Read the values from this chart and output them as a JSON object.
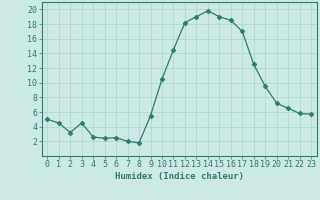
{
  "x": [
    0,
    1,
    2,
    3,
    4,
    5,
    6,
    7,
    8,
    9,
    10,
    11,
    12,
    13,
    14,
    15,
    16,
    17,
    18,
    19,
    20,
    21,
    22,
    23
  ],
  "y": [
    5.0,
    4.5,
    3.2,
    4.5,
    2.6,
    2.4,
    2.5,
    2.0,
    1.8,
    5.5,
    10.5,
    14.5,
    18.2,
    19.0,
    19.8,
    19.0,
    18.5,
    17.0,
    12.5,
    9.5,
    7.2,
    6.5,
    5.8,
    5.7
  ],
  "line_color": "#2d7d6d",
  "marker": "D",
  "marker_size": 2.5,
  "bg_color": "#cce9e5",
  "grid_color": "#aad4ce",
  "xlabel": "Humidex (Indice chaleur)",
  "xlim": [
    -0.5,
    23.5
  ],
  "ylim": [
    0,
    21
  ],
  "yticks": [
    2,
    4,
    6,
    8,
    10,
    12,
    14,
    16,
    18,
    20
  ],
  "xticks": [
    0,
    1,
    2,
    3,
    4,
    5,
    6,
    7,
    8,
    9,
    10,
    11,
    12,
    13,
    14,
    15,
    16,
    17,
    18,
    19,
    20,
    21,
    22,
    23
  ],
  "tick_color": "#2d7d6d",
  "label_fontsize": 6.5,
  "tick_fontsize": 6.0,
  "spine_color": "#2d7d6d"
}
